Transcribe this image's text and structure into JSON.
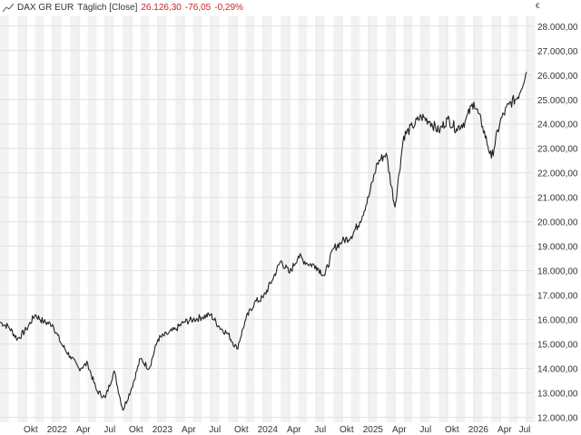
{
  "legend": {
    "name": "DAX GR EUR",
    "interval": "Täglich [Close]",
    "last": "26.126,30",
    "change": "-76,05",
    "change_pct": "-0,29%"
  },
  "currency_symbol": "€",
  "chart_data": {
    "type": "line",
    "title": "",
    "xlabel": "",
    "ylabel": "",
    "ylim": [
      11800,
      28400
    ],
    "grid": true,
    "y_ticks": [
      12000,
      13000,
      14000,
      15000,
      16000,
      17000,
      18000,
      19000,
      20000,
      21000,
      22000,
      23000,
      24000,
      25000,
      26000,
      27000,
      28000
    ],
    "y_tick_labels": [
      "12.000,00",
      "13.000,00",
      "14.000,00",
      "15.000,00",
      "16.000,00",
      "17.000,00",
      "18.000,00",
      "19.000,00",
      "20.000,00",
      "21.000,00",
      "22.000,00",
      "23.000,00",
      "24.000,00",
      "25.000,00",
      "26.000,00",
      "27.000,00",
      "28.000,00"
    ],
    "x_ticks": [
      "Okt",
      "2022",
      "Apr",
      "Jul",
      "Okt",
      "2023",
      "Apr",
      "Jul",
      "Okt",
      "2024",
      "Apr",
      "Jul",
      "Okt",
      "2025",
      "Apr",
      "Jul",
      "Okt",
      "2026",
      "Apr",
      "Jul"
    ],
    "series": [
      {
        "x": [
          "2021-07",
          "2021-08",
          "2021-09",
          "2021-10",
          "2021-11",
          "2021-12",
          "2022-01",
          "2022-02",
          "2022-03",
          "2022-04",
          "2022-05",
          "2022-06",
          "2022-07",
          "2022-08",
          "2022-09",
          "2022-10",
          "2022-11",
          "2022-12",
          "2023-01",
          "2023-02",
          "2023-03",
          "2023-04",
          "2023-05",
          "2023-06",
          "2023-07",
          "2023-08",
          "2023-09",
          "2023-10",
          "2023-11",
          "2023-12",
          "2024-01",
          "2024-02",
          "2024-03",
          "2024-04",
          "2024-05",
          "2024-06",
          "2024-07",
          "2024-08",
          "2024-09",
          "2024-10",
          "2024-11",
          "2024-12",
          "2025-01",
          "2025-02",
          "2025-03",
          "2025-04",
          "2025-05",
          "2025-06",
          "2025-07",
          "2025-08",
          "2025-09",
          "2025-10",
          "2025-11",
          "2025-12",
          "2026-01",
          "2026-02",
          "2026-03",
          "2026-04",
          "2026-05",
          "2026-06",
          "2026-07"
        ],
        "values": [
          15900,
          15700,
          15200,
          15600,
          16200,
          15900,
          15800,
          15000,
          14500,
          14000,
          14200,
          13100,
          12800,
          13900,
          12300,
          13200,
          14400,
          14000,
          15200,
          15400,
          15600,
          15900,
          16000,
          16100,
          16200,
          15700,
          15400,
          14800,
          16000,
          16700,
          16900,
          17600,
          18400,
          17900,
          18600,
          18300,
          18200,
          17800,
          18900,
          19200,
          19400,
          20000,
          21000,
          22400,
          22800,
          20600,
          23500,
          23900,
          24300,
          24100,
          23700,
          24200,
          23800,
          24100,
          24900,
          23900,
          22600,
          24100,
          24800,
          25100,
          26126
        ]
      }
    ]
  }
}
